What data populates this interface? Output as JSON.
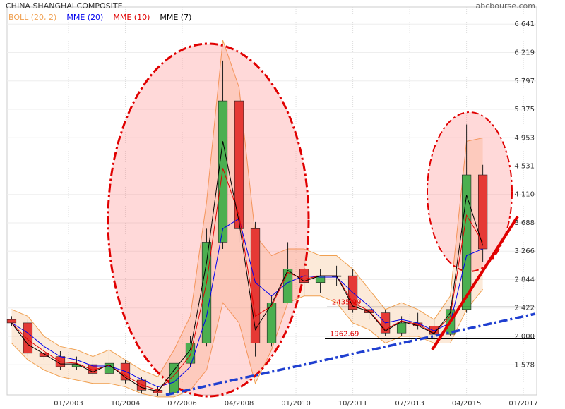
{
  "chart_data": {
    "type": "candlestick",
    "title": "CHINA SHANGHAI COMPOSITE",
    "source": "abcbourse.com",
    "x": [
      2001.25,
      2001.75,
      2002.25,
      2002.75,
      2003.25,
      2003.75,
      2004.25,
      2004.75,
      2005.25,
      2005.75,
      2006.25,
      2006.75,
      2007.25,
      2007.75,
      2008.25,
      2008.75,
      2009.25,
      2009.75,
      2010.25,
      2010.75,
      2011.25,
      2011.75,
      2012.25,
      2012.75,
      2013.25,
      2013.75,
      2014.25,
      2014.75,
      2015.25,
      2015.75
    ],
    "open": [
      2250,
      2200,
      1750,
      1700,
      1550,
      1580,
      1450,
      1600,
      1350,
      1200,
      1160,
      1600,
      1900,
      3400,
      5500,
      3600,
      1900,
      2500,
      3000,
      2800,
      2900,
      2900,
      2400,
      2350,
      2050,
      2200,
      2150,
      2030,
      2400,
      4400
    ],
    "high": [
      2300,
      2250,
      1850,
      1780,
      1700,
      1650,
      1800,
      1650,
      1400,
      1250,
      1650,
      2000,
      3600,
      6100,
      5600,
      3700,
      2600,
      3400,
      3200,
      3000,
      3050,
      3000,
      2500,
      2400,
      2300,
      2350,
      2250,
      2450,
      5150,
      4550
    ],
    "low": [
      2150,
      1700,
      1650,
      1500,
      1500,
      1400,
      1400,
      1300,
      1150,
      1120,
      1150,
      1550,
      1850,
      3300,
      3400,
      1700,
      1850,
      2500,
      2600,
      2650,
      2750,
      2350,
      2250,
      2000,
      2000,
      2100,
      1950,
      2000,
      2350,
      3100
    ],
    "close": [
      2200,
      1750,
      1700,
      1550,
      1580,
      1450,
      1600,
      1350,
      1200,
      1160,
      1600,
      1900,
      3400,
      5500,
      3600,
      1900,
      2500,
      3000,
      2800,
      2900,
      2900,
      2400,
      2350,
      2050,
      2200,
      2150,
      2030,
      2400,
      4400,
      3300
    ],
    "up_color": "#4caf50",
    "down_color": "#e53935",
    "series": [
      {
        "name": "BOLL (20, 2)",
        "color": "#f0a050",
        "upper": [
          2400,
          2300,
          2000,
          1850,
          1800,
          1700,
          1800,
          1650,
          1500,
          1400,
          1800,
          2300,
          4000,
          6400,
          5700,
          3500,
          3200,
          3300,
          3300,
          3200,
          3200,
          3000,
          2700,
          2400,
          2500,
          2400,
          2250,
          2600,
          4900,
          4950
        ],
        "lower": [
          1900,
          1650,
          1500,
          1400,
          1350,
          1300,
          1300,
          1250,
          1150,
          1100,
          1100,
          1200,
          1500,
          2500,
          2200,
          1300,
          1800,
          2500,
          2600,
          2600,
          2500,
          2200,
          2100,
          1900,
          2000,
          2000,
          1900,
          1900,
          2400,
          2700
        ]
      },
      {
        "name": "MME (20)",
        "color": "#0000ee",
        "values": [
          2200,
          2050,
          1850,
          1700,
          1650,
          1560,
          1560,
          1480,
          1360,
          1250,
          1320,
          1550,
          2300,
          3600,
          3750,
          2800,
          2600,
          2800,
          2900,
          2880,
          2880,
          2650,
          2450,
          2200,
          2250,
          2200,
          2080,
          2200,
          3200,
          3300
        ]
      },
      {
        "name": "MME (10)",
        "color": "#e00000",
        "values": [
          2200,
          1950,
          1780,
          1620,
          1600,
          1500,
          1570,
          1420,
          1280,
          1200,
          1420,
          1720,
          2800,
          4500,
          3800,
          2300,
          2450,
          2950,
          2850,
          2900,
          2900,
          2500,
          2380,
          2100,
          2230,
          2180,
          2050,
          2300,
          3800,
          3400
        ]
      },
      {
        "name": "MME (7)",
        "color": "#000000",
        "values": [
          2200,
          1880,
          1740,
          1590,
          1590,
          1470,
          1580,
          1390,
          1240,
          1180,
          1500,
          1800,
          3100,
          4900,
          3700,
          2100,
          2480,
          2980,
          2820,
          2900,
          2900,
          2450,
          2370,
          2080,
          2220,
          2160,
          2040,
          2350,
          4100,
          3350
        ]
      }
    ],
    "levels": [
      2435.99,
      1962.69
    ],
    "level_color": "#e00000",
    "xlim": [
      2001.11,
      2017.41
    ],
    "xticks": [
      {
        "value": 2003,
        "label": "01/2003"
      },
      {
        "value": 2004.75,
        "label": "10/2004"
      },
      {
        "value": 2006.5,
        "label": "07/2006"
      },
      {
        "value": 2008.25,
        "label": "04/2008"
      },
      {
        "value": 2010,
        "label": "01/2010"
      },
      {
        "value": 2011.75,
        "label": "10/2011"
      },
      {
        "value": 2013.5,
        "label": "07/2013"
      },
      {
        "value": 2015.25,
        "label": "04/2015"
      },
      {
        "value": 2017,
        "label": "01/2017"
      }
    ],
    "ylim": [
      1130,
      6895
    ],
    "yticks": [
      {
        "value": 1578,
        "label": "1 578"
      },
      {
        "value": 2000,
        "label": "2 000"
      },
      {
        "value": 2422,
        "label": "2 422"
      },
      {
        "value": 2844,
        "label": "2 844"
      },
      {
        "value": 3266,
        "label": "3 266"
      },
      {
        "value": 3688,
        "label": "3 688"
      },
      {
        "value": 4110,
        "label": "4 110"
      },
      {
        "value": 4531,
        "label": "4 531"
      },
      {
        "value": 4953,
        "label": "4 953"
      },
      {
        "value": 5375,
        "label": "5 375"
      },
      {
        "value": 5797,
        "label": "5 797"
      },
      {
        "value": 6219,
        "label": "6 219"
      },
      {
        "value": 6641,
        "label": "6 641"
      }
    ],
    "grid": true
  }
}
